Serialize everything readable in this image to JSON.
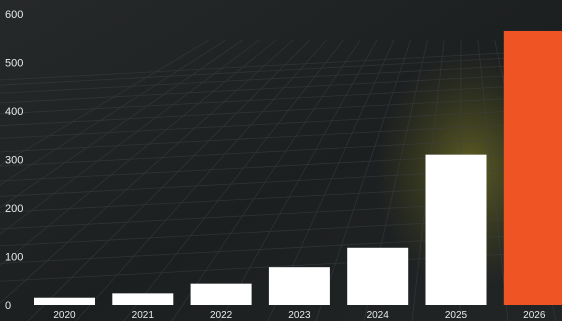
{
  "chart_data": {
    "type": "bar",
    "categories": [
      "2020",
      "2021",
      "2022",
      "2023",
      "2024",
      "2025",
      "2026"
    ],
    "values": [
      15,
      24,
      44,
      78,
      118,
      310,
      565
    ],
    "highlight_index": 6,
    "colors": {
      "bar": "#ffffff",
      "highlight": "#ee5424",
      "tick_label": "#e8ebec",
      "background": "#1f2223"
    },
    "ylim": [
      0,
      600
    ],
    "yticks": [
      0,
      100,
      200,
      300,
      400,
      500,
      600
    ],
    "grid": false,
    "legend": "none",
    "title": "",
    "xlabel": "",
    "ylabel": ""
  }
}
